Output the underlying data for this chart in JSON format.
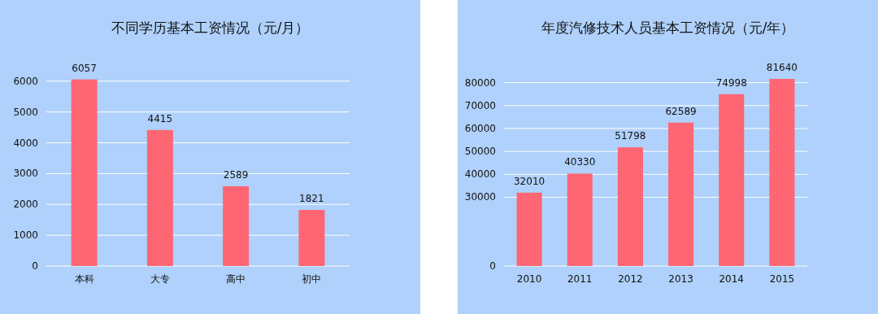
{
  "chart_data": [
    {
      "type": "bar",
      "title": "不同学历基本工资情况（元/月）",
      "categories": [
        "本科",
        "大专",
        "高中",
        "初中"
      ],
      "values": [
        6057,
        4415,
        2589,
        1821
      ],
      "color": "#ff6673",
      "ylim": [
        0,
        6100
      ],
      "yticks": [
        0,
        1000,
        2000,
        3000,
        4000,
        5000,
        6000
      ],
      "grid": "y",
      "data_labels": true
    },
    {
      "type": "bar",
      "title": "年度汽修技术人员基本工资情况（元/年）",
      "categories": [
        "2010",
        "2011",
        "2012",
        "2013",
        "2014",
        "2015"
      ],
      "values": [
        32010,
        40330,
        51798,
        62589,
        74998,
        81640
      ],
      "color": "#ff6673",
      "ylim": [
        0,
        82000
      ],
      "yticks": [
        0,
        30000,
        40000,
        50000,
        60000,
        70000,
        80000
      ],
      "grid": "y",
      "data_labels": true
    }
  ]
}
